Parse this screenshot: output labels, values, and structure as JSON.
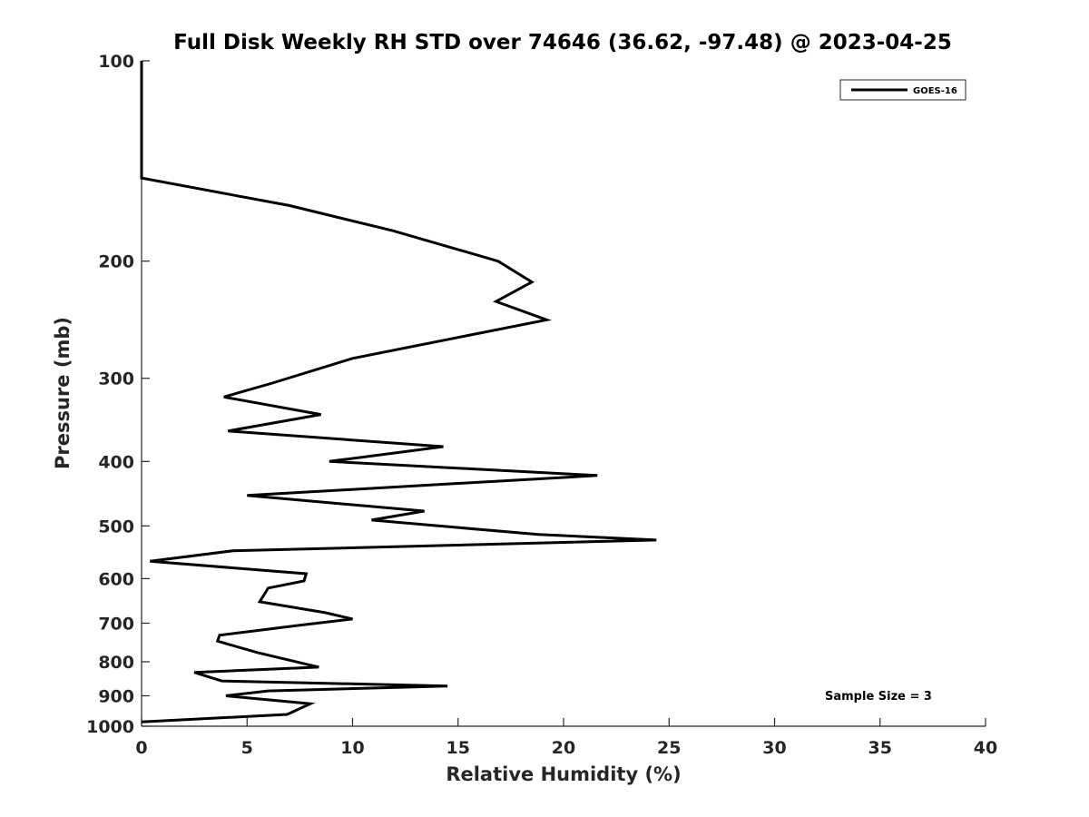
{
  "chart_data": {
    "type": "line",
    "title": "Full Disk Weekly RH STD over 74646 (36.62, -97.48) @ 2023-04-25",
    "xlabel": "Relative Humidity (%)",
    "ylabel": "Pressure (mb)",
    "xlim": [
      0,
      40
    ],
    "ylim": [
      100,
      1000
    ],
    "yscale": "log",
    "y_inverted": true,
    "xticks": [
      0,
      5,
      10,
      15,
      20,
      25,
      30,
      35,
      40
    ],
    "yticks": [
      100,
      200,
      300,
      400,
      500,
      600,
      700,
      800,
      900,
      1000
    ],
    "legend": {
      "position": "top-right",
      "entries": [
        "GOES-16"
      ]
    },
    "annotation": "Sample Size = 3",
    "series": [
      {
        "name": "GOES-16",
        "color": "#000000",
        "points": [
          [
            0,
            100
          ],
          [
            0,
            125
          ],
          [
            0,
            150
          ],
          [
            7,
            165
          ],
          [
            11.9,
            180
          ],
          [
            16.9,
            200
          ],
          [
            18.5,
            215
          ],
          [
            16.8,
            230
          ],
          [
            19.2,
            245
          ],
          [
            10,
            280
          ],
          [
            6.2,
            305
          ],
          [
            3.9,
            320
          ],
          [
            8.5,
            340
          ],
          [
            4.1,
            360
          ],
          [
            14.3,
            380
          ],
          [
            8.9,
            400
          ],
          [
            21.6,
            420
          ],
          [
            5.0,
            450
          ],
          [
            13.4,
            475
          ],
          [
            10.9,
            490
          ],
          [
            18.8,
            515
          ],
          [
            24.4,
            525
          ],
          [
            4.3,
            545
          ],
          [
            0.4,
            565
          ],
          [
            7.8,
            590
          ],
          [
            7.7,
            605
          ],
          [
            6.0,
            620
          ],
          [
            5.6,
            650
          ],
          [
            8.7,
            675
          ],
          [
            10.0,
            690
          ],
          [
            7.5,
            705
          ],
          [
            3.7,
            730
          ],
          [
            3.6,
            745
          ],
          [
            5.5,
            775
          ],
          [
            8.4,
            815
          ],
          [
            2.5,
            830
          ],
          [
            3.8,
            855
          ],
          [
            14.5,
            870
          ],
          [
            6.0,
            885
          ],
          [
            4.0,
            900
          ],
          [
            8.0,
            925
          ],
          [
            6.9,
            960
          ],
          [
            0,
            985
          ]
        ]
      }
    ]
  }
}
